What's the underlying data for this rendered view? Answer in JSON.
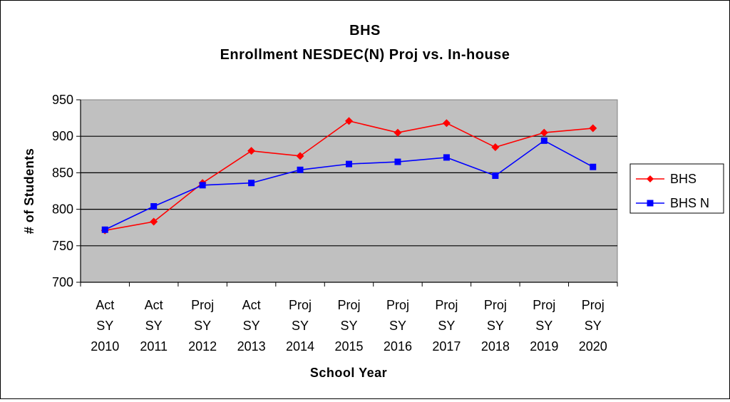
{
  "chart_data": {
    "type": "line",
    "title": "BHS",
    "subtitle": "Enrollment NESDEC(N) Proj vs. In-house",
    "xlabel": "School Year",
    "ylabel": "# of Students",
    "ylim": [
      700,
      950
    ],
    "yticks": [
      "950",
      "900",
      "850",
      "800",
      "750",
      "700"
    ],
    "ytick_values": [
      950,
      900,
      850,
      800,
      750,
      700
    ],
    "grid": true,
    "legend_position": "right",
    "categories": [
      [
        "Act",
        "SY",
        "2010"
      ],
      [
        "Act",
        "SY",
        "2011"
      ],
      [
        "Proj",
        "SY",
        "2012"
      ],
      [
        "Act",
        "SY",
        "2013"
      ],
      [
        "Proj",
        "SY",
        "2014"
      ],
      [
        "Proj",
        "SY",
        "2015"
      ],
      [
        "Proj",
        "SY",
        "2016"
      ],
      [
        "Proj",
        "SY",
        "2017"
      ],
      [
        "Proj",
        "SY",
        "2018"
      ],
      [
        "Proj",
        "SY",
        "2019"
      ],
      [
        "Proj",
        "SY",
        "2020"
      ]
    ],
    "series": [
      {
        "name": "BHS",
        "color": "#ff0000",
        "marker": "diamond",
        "values": [
          771,
          783,
          836,
          880,
          873,
          921,
          905,
          918,
          885,
          905,
          911
        ]
      },
      {
        "name": "BHS N",
        "color": "#0000ff",
        "marker": "square",
        "values": [
          772,
          804,
          833,
          836,
          854,
          862,
          865,
          871,
          846,
          894,
          858
        ]
      }
    ]
  }
}
